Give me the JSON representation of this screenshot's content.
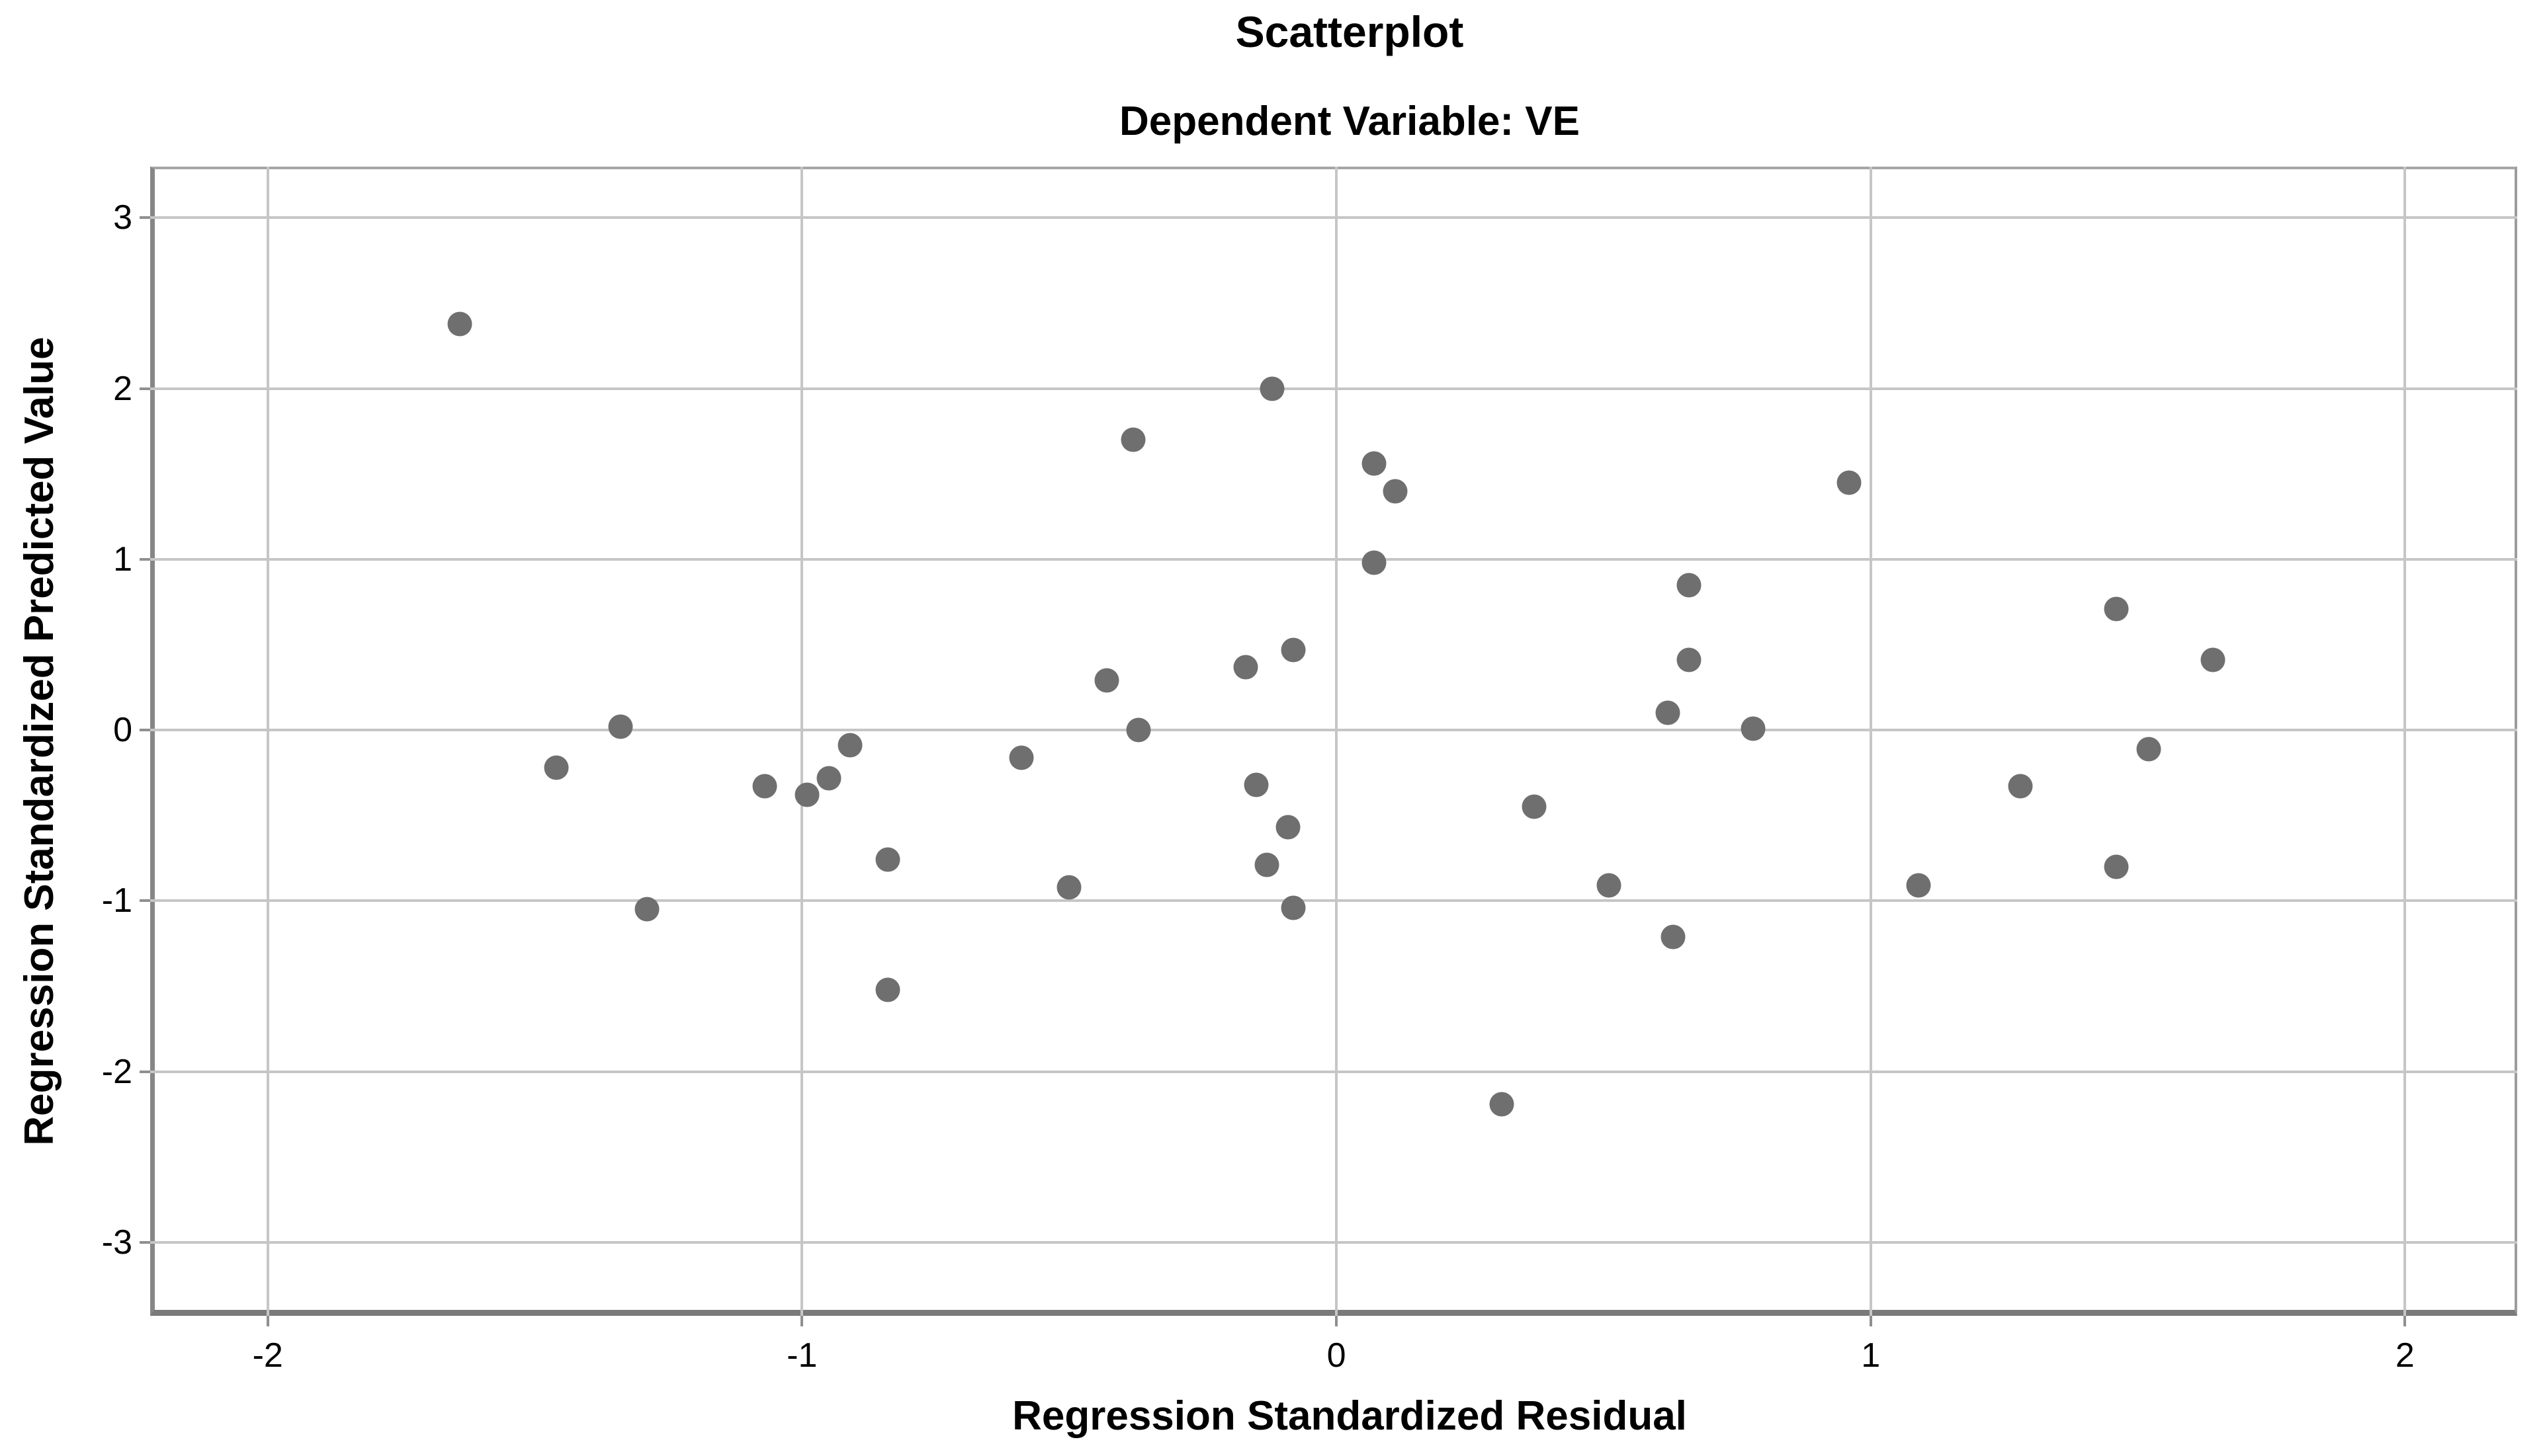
{
  "colors": {
    "dot": "#6f6f6f",
    "gridline": "#c6c6c6",
    "frame": "#8f8f8f",
    "background": "#ffffff",
    "text": "#000000"
  },
  "chart_data": {
    "type": "scatter",
    "title": "Scatterplot",
    "subtitle": "Dependent Variable: VE",
    "xlabel": "Regression Standardized Residual",
    "ylabel": "Regression Standardized Predicted Value",
    "xlim": [
      -2.22,
      2.21
    ],
    "ylim": [
      -3.43,
      3.3
    ],
    "x_ticks": [
      -2,
      -1,
      0,
      1,
      2
    ],
    "y_ticks": [
      3,
      2,
      1,
      0,
      -1,
      -2,
      -3
    ],
    "grid": true,
    "legend": "none",
    "points": [
      [
        -1.64,
        2.38
      ],
      [
        -0.12,
        2.0
      ],
      [
        -0.38,
        1.7
      ],
      [
        0.07,
        1.56
      ],
      [
        0.11,
        1.4
      ],
      [
        0.96,
        1.45
      ],
      [
        0.07,
        0.98
      ],
      [
        0.66,
        0.85
      ],
      [
        1.46,
        0.71
      ],
      [
        -0.08,
        0.47
      ],
      [
        0.66,
        0.41
      ],
      [
        1.64,
        0.41
      ],
      [
        -0.17,
        0.37
      ],
      [
        -0.43,
        0.29
      ],
      [
        0.62,
        0.1
      ],
      [
        -1.34,
        0.02
      ],
      [
        0.78,
        0.01
      ],
      [
        -0.37,
        0.0
      ],
      [
        -0.91,
        -0.09
      ],
      [
        1.52,
        -0.11
      ],
      [
        -0.59,
        -0.16
      ],
      [
        -1.46,
        -0.22
      ],
      [
        -0.95,
        -0.28
      ],
      [
        -0.15,
        -0.32
      ],
      [
        -1.07,
        -0.33
      ],
      [
        1.28,
        -0.33
      ],
      [
        -0.99,
        -0.38
      ],
      [
        0.37,
        -0.45
      ],
      [
        -0.09,
        -0.57
      ],
      [
        -0.84,
        -0.76
      ],
      [
        -0.13,
        -0.79
      ],
      [
        1.46,
        -0.8
      ],
      [
        -0.5,
        -0.92
      ],
      [
        0.51,
        -0.91
      ],
      [
        1.09,
        -0.91
      ],
      [
        -1.29,
        -1.05
      ],
      [
        -0.08,
        -1.04
      ],
      [
        0.63,
        -1.21
      ],
      [
        -0.84,
        -1.52
      ],
      [
        0.31,
        -2.19
      ]
    ]
  }
}
